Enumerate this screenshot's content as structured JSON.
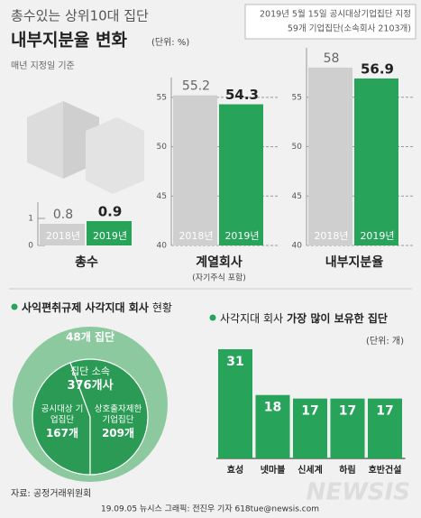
{
  "header": {
    "title": "총수있는 상위10대 집단",
    "subtitle": "내부지분율 변화",
    "unit": "(단위: %)",
    "basis": "매년 지정일 기준",
    "note": [
      "2019년 5월 15일 공시대상기업집단 지정",
      "59개 기업집단(소속회사 2103개)"
    ]
  },
  "chart_data": [
    {
      "type": "bar",
      "title": "총수",
      "categories": [
        "2018년",
        "2019년"
      ],
      "values": [
        0.8,
        0.9
      ],
      "colors": [
        "#cfcfcf",
        "#27a35a"
      ],
      "ylim": [
        0,
        1.6
      ],
      "yticks": [
        0,
        1
      ],
      "grid": false
    },
    {
      "type": "bar",
      "title": "계열회사",
      "subtitle": "(자기주식 포함)",
      "categories": [
        "2018년",
        "2019년"
      ],
      "values": [
        55.2,
        54.3
      ],
      "colors": [
        "#cfcfcf",
        "#27a35a"
      ],
      "ylim": [
        40,
        57
      ],
      "yticks": [
        40,
        45,
        50,
        55
      ],
      "grid": true
    },
    {
      "type": "bar",
      "title": "내부지분율",
      "categories": [
        "2018년",
        "2019년"
      ],
      "values": [
        58,
        56.9
      ],
      "colors": [
        "#cfcfcf",
        "#27a35a"
      ],
      "ylim": [
        40,
        60
      ],
      "yticks": [
        40,
        45,
        50,
        55
      ],
      "grid": true
    },
    {
      "type": "pie",
      "title": "사익편취규제 사각지대 회사",
      "title_suffix": "현황",
      "outer_value": 48,
      "outer_label": "48개 집단",
      "total_title": "집단 소속",
      "total": 376,
      "total_label": "376개사",
      "categories": [
        "공시대상 기업집단",
        "상호출자제한 기업집단"
      ],
      "values": [
        167,
        209
      ],
      "value_labels": [
        "167개",
        "209개"
      ],
      "outer_color": "#8cc99f",
      "color": "#2b9a55"
    },
    {
      "type": "hbar-count",
      "title": "사각지대 회사",
      "title_bold": "가장 많이 보유한 집단",
      "unit": "(단위: 개)",
      "categories": [
        "효성",
        "넷마블",
        "신세계",
        "하림",
        "호반건설"
      ],
      "values": [
        31,
        18,
        17,
        17,
        17
      ],
      "color": "#27a35a"
    }
  ],
  "source": "자료: 공정거래위원회",
  "credit": "19.09.05 뉴시스 그래픽: 전진우 기자 618tue@newsis.com",
  "logo": "NEWSIS"
}
